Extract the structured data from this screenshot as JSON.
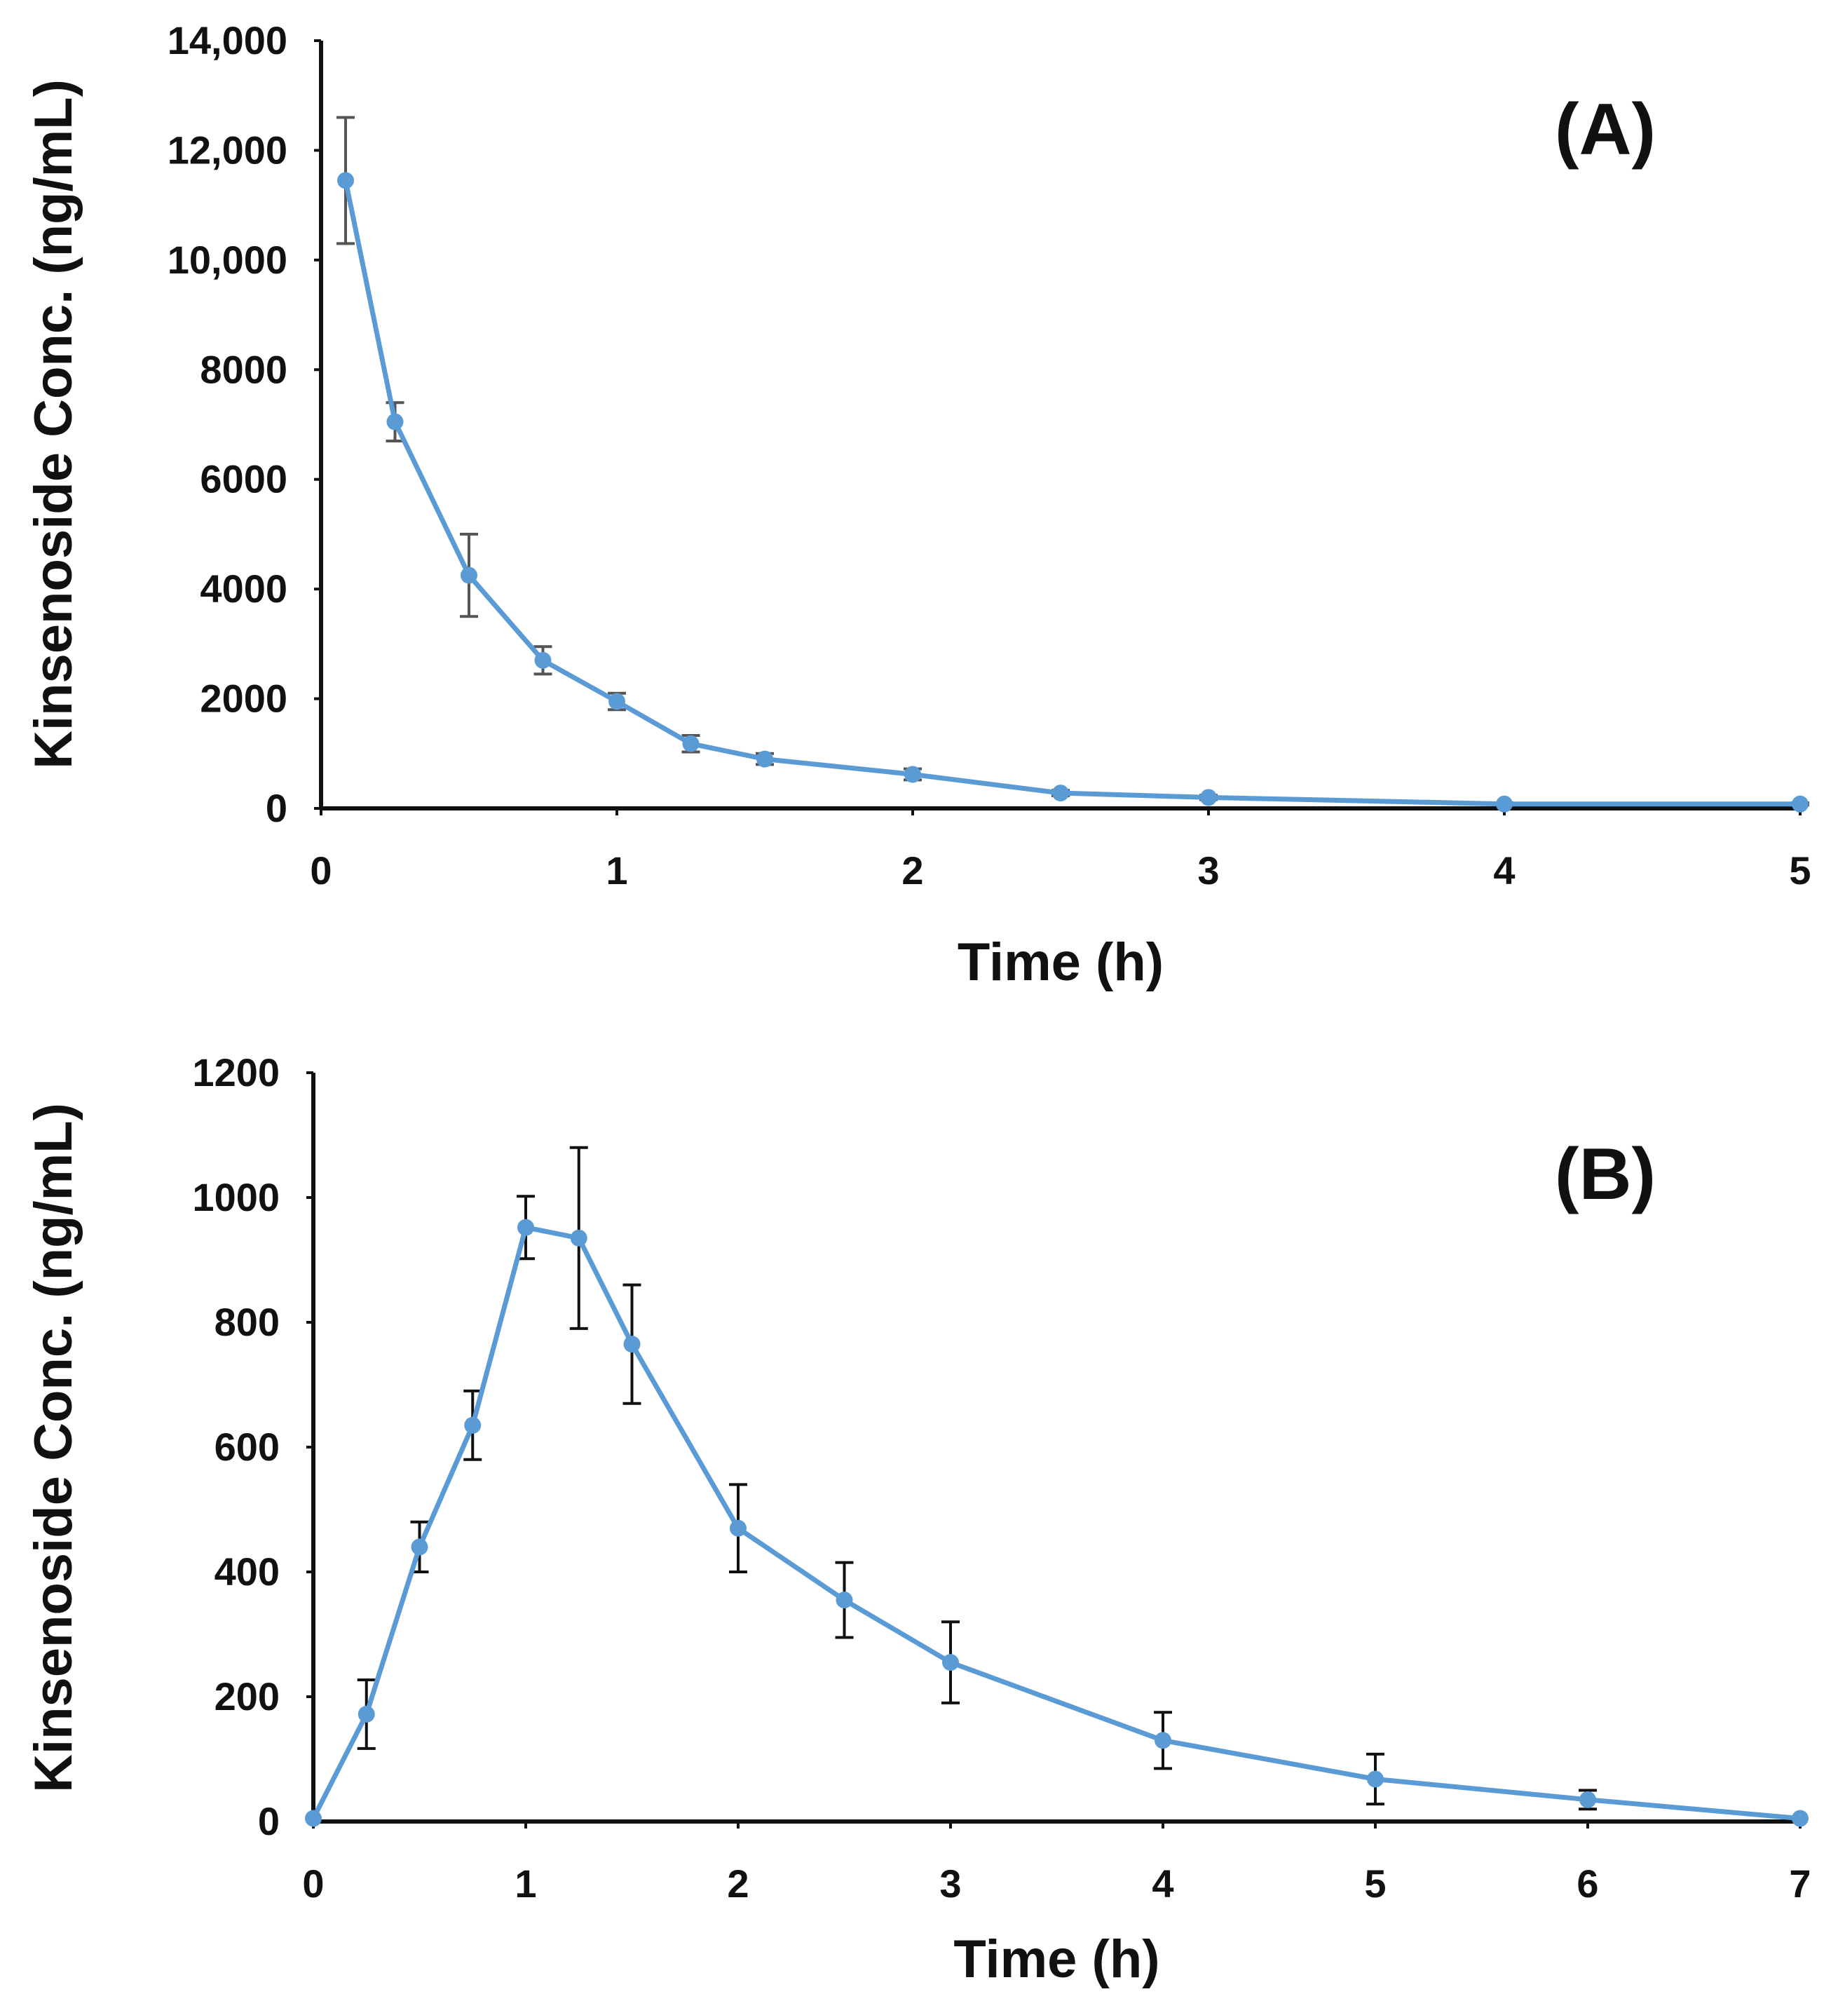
{
  "chart_data": [
    {
      "type": "line",
      "panel_label": "(A)",
      "xlabel": "Time (h)",
      "ylabel": "Kinsenoside Conc. (ng/mL)",
      "xlim": [
        0,
        5
      ],
      "ylim": [
        0,
        14000
      ],
      "xticks": [
        0,
        1,
        2,
        3,
        4,
        5
      ],
      "xtick_labels": [
        "0",
        "1",
        "2",
        "3",
        "4",
        "5"
      ],
      "yticks": [
        0,
        2000,
        4000,
        6000,
        8000,
        10000,
        12000,
        14000
      ],
      "ytick_labels": [
        "0",
        "2000",
        "4000",
        "6000",
        "8000",
        "10,000",
        "12,000",
        "14,000"
      ],
      "grid": false,
      "series_color": "#5b9bd5",
      "error_color": "#555555",
      "series": [
        {
          "name": "Kinsenoside",
          "x": [
            0.083,
            0.25,
            0.5,
            0.75,
            1.0,
            1.25,
            1.5,
            2.0,
            2.5,
            3.0,
            4.0,
            5.0
          ],
          "values": [
            11450,
            7050,
            4250,
            2700,
            1950,
            1180,
            900,
            620,
            280,
            200,
            80,
            80
          ],
          "errors": [
            1150,
            350,
            750,
            250,
            150,
            150,
            100,
            100,
            50,
            40,
            20,
            20
          ]
        }
      ]
    },
    {
      "type": "line",
      "panel_label": "(B)",
      "xlabel": "Time (h)",
      "ylabel": "Kinsenoside Conc. (ng/mL)",
      "xlim": [
        0,
        7
      ],
      "ylim": [
        0,
        1200
      ],
      "xticks": [
        0,
        1,
        2,
        3,
        4,
        5,
        6,
        7
      ],
      "xtick_labels": [
        "0",
        "1",
        "2",
        "3",
        "4",
        "5",
        "6",
        "7"
      ],
      "yticks": [
        0,
        200,
        400,
        600,
        800,
        1000,
        1200
      ],
      "ytick_labels": [
        "0",
        "200",
        "400",
        "600",
        "800",
        "1000",
        "1200"
      ],
      "grid": false,
      "series_color": "#5b9bd5",
      "error_color": "#111111",
      "series": [
        {
          "name": "Kinsenoside",
          "x": [
            0,
            0.25,
            0.5,
            0.75,
            1.0,
            1.25,
            1.5,
            2.0,
            2.5,
            3.0,
            4.0,
            5.0,
            6.0,
            7.0
          ],
          "values": [
            5,
            172,
            440,
            635,
            952,
            935,
            765,
            470,
            355,
            255,
            130,
            68,
            35,
            5
          ],
          "errors": [
            0,
            55,
            40,
            55,
            50,
            145,
            95,
            70,
            60,
            65,
            45,
            40,
            15,
            0
          ]
        }
      ]
    }
  ]
}
